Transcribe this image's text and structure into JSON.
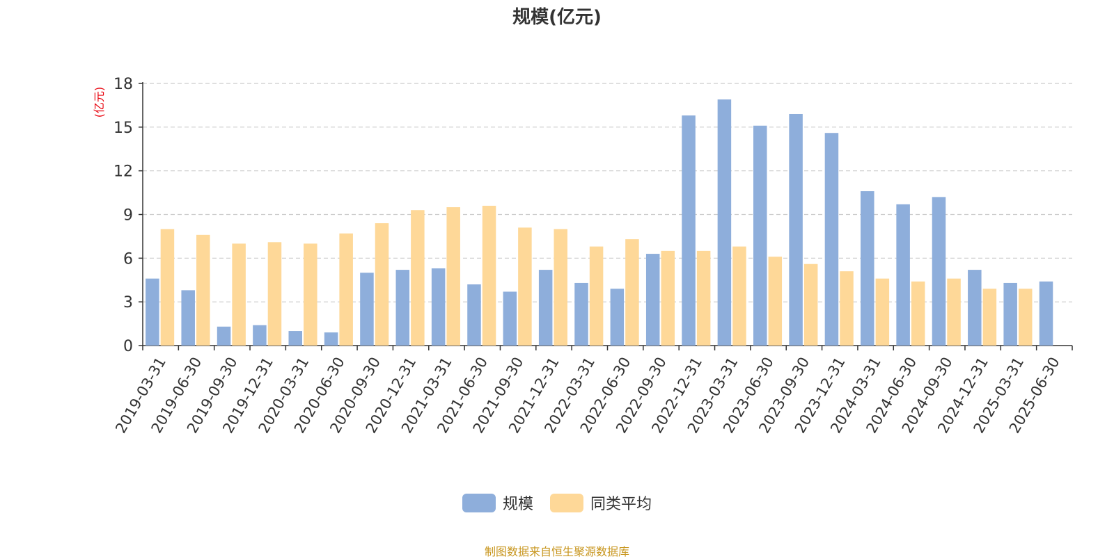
{
  "chart_data": {
    "type": "bar",
    "title": "规模(亿元)",
    "ylabel": "(亿元)",
    "ylim": [
      0,
      18
    ],
    "yticks": [
      0,
      3,
      6,
      9,
      12,
      15,
      18
    ],
    "grid": true,
    "legend_position": "bottom",
    "categories": [
      "2019-03-31",
      "2019-06-30",
      "2019-09-30",
      "2019-12-31",
      "2020-03-31",
      "2020-06-30",
      "2020-09-30",
      "2020-12-31",
      "2021-03-31",
      "2021-06-30",
      "2021-09-30",
      "2021-12-31",
      "2022-03-31",
      "2022-06-30",
      "2022-09-30",
      "2022-12-31",
      "2023-03-31",
      "2023-06-30",
      "2023-09-30",
      "2023-12-31",
      "2024-03-31",
      "2024-06-30",
      "2024-09-30",
      "2024-12-31",
      "2025-03-31",
      "2025-06-30"
    ],
    "series": [
      {
        "name": "规模",
        "color": "#8eaedb",
        "values": [
          4.6,
          3.8,
          1.3,
          1.4,
          1.0,
          0.9,
          5.0,
          5.2,
          5.3,
          4.2,
          3.7,
          5.2,
          4.3,
          3.9,
          6.3,
          15.8,
          16.9,
          15.1,
          15.9,
          14.6,
          10.6,
          9.7,
          10.2,
          5.2,
          4.3,
          4.4
        ]
      },
      {
        "name": "同类平均",
        "color": "#fed898",
        "values": [
          8.0,
          7.6,
          7.0,
          7.1,
          7.0,
          7.7,
          8.4,
          9.3,
          9.5,
          9.6,
          8.1,
          8.0,
          6.8,
          7.3,
          6.5,
          6.5,
          6.8,
          6.1,
          5.6,
          5.1,
          4.6,
          4.4,
          4.6,
          3.9,
          3.9,
          null
        ]
      }
    ]
  },
  "legend": {
    "series1": "规模",
    "series2": "同类平均"
  },
  "source_text": "制图数据来自恒生聚源数据库",
  "colors": {
    "axis_title": "#e8000b",
    "source": "#c8961e",
    "axis": "#333333",
    "grid": "#cccccc"
  }
}
